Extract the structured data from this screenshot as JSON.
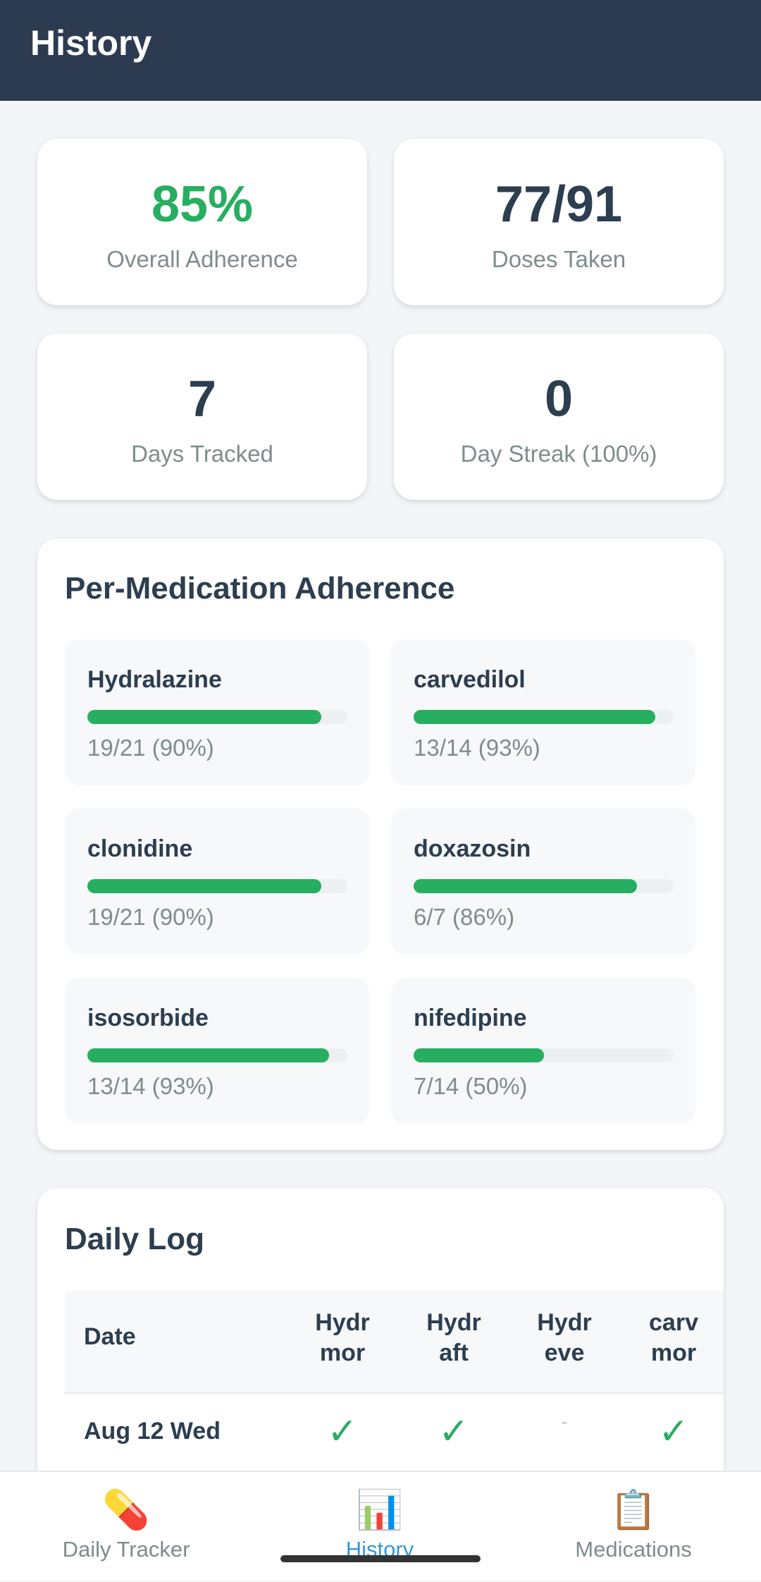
{
  "header": {
    "title": "History"
  },
  "stats": [
    {
      "value": "85%",
      "label": "Overall Adherence",
      "accent": true
    },
    {
      "value": "77/91",
      "label": "Doses Taken"
    },
    {
      "value": "7",
      "label": "Days Tracked"
    },
    {
      "value": "0",
      "label": "Day Streak (100%)"
    }
  ],
  "per_medication": {
    "title": "Per-Medication Adherence",
    "items": [
      {
        "name": "Hydralazine",
        "progress": 90,
        "label": "19/21 (90%)"
      },
      {
        "name": "carvedilol",
        "progress": 93,
        "label": "13/14 (93%)"
      },
      {
        "name": "clonidine",
        "progress": 90,
        "label": "19/21 (90%)"
      },
      {
        "name": "doxazosin",
        "progress": 86,
        "label": "6/7 (86%)"
      },
      {
        "name": "isosorbide",
        "progress": 93,
        "label": "13/14 (93%)"
      },
      {
        "name": "nifedipine",
        "progress": 50,
        "label": "7/14 (50%)"
      }
    ]
  },
  "daily_log": {
    "title": "Daily Log",
    "columns": [
      [
        "Date"
      ],
      [
        "Hydr",
        "mor"
      ],
      [
        "Hydr",
        "aft"
      ],
      [
        "Hydr",
        "eve"
      ],
      [
        "carv",
        "mor"
      ]
    ],
    "rows": [
      [
        "Aug 12 Wed",
        "✓",
        "✓",
        "-",
        "✓"
      ]
    ]
  },
  "nav": [
    {
      "icon": "💊",
      "label": "Daily Tracker"
    },
    {
      "icon": "📊",
      "label": "History",
      "active": true
    },
    {
      "icon": "📋",
      "label": "Medications"
    }
  ]
}
